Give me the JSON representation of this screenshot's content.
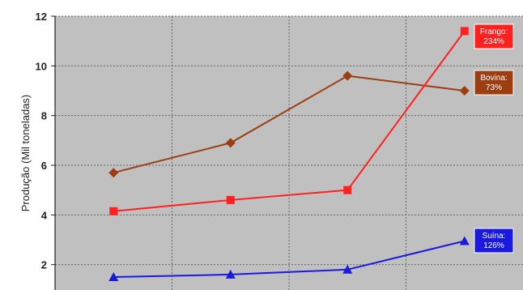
{
  "chart_data": {
    "type": "line",
    "title": "",
    "xlabel": "",
    "ylabel": "Produção (Mil toneladas)",
    "ylim": [
      0,
      12
    ],
    "yticks": [
      "2",
      "4",
      "6",
      "8",
      "10",
      "12"
    ],
    "categories": [
      "",
      "",
      "",
      ""
    ],
    "grid": true,
    "plot_background": "#c0c0c0",
    "series": [
      {
        "name": "Bovina",
        "color": "#9b3f12",
        "marker": "diamond",
        "values": [
          5.7,
          6.9,
          9.6,
          9.0
        ],
        "end_label": [
          "Bovina:",
          "73%"
        ]
      },
      {
        "name": "Frango",
        "color": "#ff2020",
        "marker": "square",
        "values": [
          4.15,
          4.6,
          5.0,
          11.4
        ],
        "end_label": [
          "Frango:",
          "234%"
        ]
      },
      {
        "name": "Suína",
        "color": "#1a1adf",
        "marker": "triangle",
        "values": [
          1.5,
          1.6,
          1.8,
          2.95
        ],
        "end_label": [
          "Suína:",
          "126%"
        ]
      }
    ]
  }
}
